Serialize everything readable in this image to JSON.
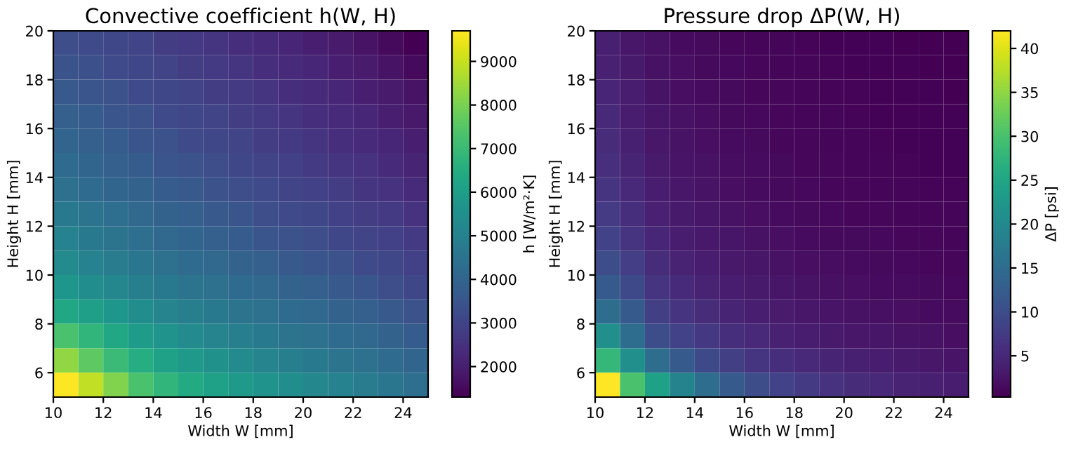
{
  "chart_data": [
    {
      "type": "heatmap",
      "title": "Convective coefficient h(W, H)",
      "xlabel": "Width W [mm]",
      "ylabel": "Height H [mm]",
      "clabel": "h [W/m²·K]",
      "xlim": [
        10,
        25
      ],
      "xticks": [
        10,
        12,
        14,
        16,
        18,
        20,
        22,
        24
      ],
      "ylim": [
        5,
        20
      ],
      "yticks": [
        6,
        8,
        10,
        12,
        14,
        16,
        18,
        20
      ],
      "clim": [
        1300,
        9700
      ],
      "cticks": [
        2000,
        3000,
        4000,
        5000,
        6000,
        7000,
        8000,
        9000
      ],
      "cells": [
        [
          3300,
          3200,
          3100,
          3000,
          2800,
          2700,
          2600,
          2400,
          2300,
          2200,
          2000,
          1900,
          1700,
          1500,
          1300
        ],
        [
          3450,
          3350,
          3200,
          3100,
          3000,
          2800,
          2700,
          2600,
          2400,
          2300,
          2200,
          2000,
          1900,
          1700,
          1500
        ],
        [
          3600,
          3500,
          3400,
          3200,
          3100,
          3000,
          2800,
          2700,
          2600,
          2400,
          2300,
          2200,
          2000,
          1900,
          1700
        ],
        [
          3800,
          3700,
          3500,
          3400,
          3200,
          3100,
          3000,
          2800,
          2700,
          2600,
          2400,
          2300,
          2200,
          2000,
          1850
        ],
        [
          4000,
          3800,
          3700,
          3500,
          3400,
          3200,
          3100,
          3000,
          2800,
          2700,
          2600,
          2400,
          2300,
          2200,
          2000
        ],
        [
          4200,
          4000,
          3800,
          3700,
          3500,
          3400,
          3300,
          3100,
          3000,
          2900,
          2700,
          2600,
          2500,
          2300,
          2150
        ],
        [
          4400,
          4200,
          4000,
          3900,
          3700,
          3600,
          3400,
          3300,
          3200,
          3000,
          2900,
          2800,
          2600,
          2500,
          2300
        ],
        [
          4700,
          4500,
          4300,
          4100,
          3900,
          3800,
          3600,
          3500,
          3300,
          3200,
          3100,
          2900,
          2800,
          2700,
          2500
        ],
        [
          5000,
          4700,
          4500,
          4300,
          4100,
          4000,
          3800,
          3700,
          3500,
          3400,
          3300,
          3100,
          3000,
          2900,
          2700
        ],
        [
          5300,
          5000,
          4800,
          4600,
          4400,
          4200,
          4100,
          3900,
          3800,
          3600,
          3500,
          3400,
          3200,
          3100,
          2900
        ],
        [
          5700,
          5400,
          5200,
          4900,
          4700,
          4500,
          4400,
          4200,
          4100,
          3900,
          3800,
          3600,
          3500,
          3300,
          3100
        ],
        [
          6300,
          6000,
          5700,
          5400,
          5100,
          4900,
          4700,
          4500,
          4400,
          4200,
          4100,
          3900,
          3800,
          3600,
          3400
        ],
        [
          7300,
          6800,
          6300,
          5900,
          5600,
          5300,
          5100,
          4900,
          4700,
          4500,
          4400,
          4200,
          4100,
          3900,
          3700
        ],
        [
          8300,
          7600,
          7000,
          6500,
          6100,
          5800,
          5500,
          5300,
          5100,
          4900,
          4700,
          4500,
          4400,
          4200,
          4000
        ],
        [
          9700,
          8900,
          8100,
          7300,
          6800,
          6400,
          6100,
          5800,
          5600,
          5400,
          5200,
          5000,
          4800,
          4600,
          4300
        ]
      ]
    },
    {
      "type": "heatmap",
      "title": "Pressure drop ΔP(W, H)",
      "xlabel": "Width W [mm]",
      "ylabel": "Height H [mm]",
      "clabel": "ΔP [psi]",
      "xlim": [
        10,
        25
      ],
      "xticks": [
        10,
        12,
        14,
        16,
        18,
        20,
        22,
        24
      ],
      "ylim": [
        5,
        20
      ],
      "yticks": [
        6,
        8,
        10,
        12,
        14,
        16,
        18,
        20
      ],
      "clim": [
        0.3,
        42
      ],
      "cticks": [
        5,
        10,
        15,
        20,
        25,
        30,
        35,
        40
      ],
      "cells": [
        [
          3.9,
          2.9,
          2.1,
          1.6,
          1.3,
          1.1,
          0.9,
          0.8,
          0.7,
          0.6,
          0.6,
          0.5,
          0.4,
          0.4,
          0.3
        ],
        [
          4.2,
          3.1,
          2.2,
          1.8,
          1.4,
          1.2,
          1,
          0.9,
          0.8,
          0.7,
          0.6,
          0.5,
          0.5,
          0.4,
          0.4
        ],
        [
          4.6,
          3.4,
          2.4,
          1.9,
          1.6,
          1.3,
          1.1,
          1,
          0.8,
          0.7,
          0.7,
          0.6,
          0.5,
          0.5,
          0.4
        ],
        [
          5,
          3.7,
          2.6,
          2.1,
          1.7,
          1.4,
          1.2,
          1,
          0.9,
          0.8,
          0.7,
          0.6,
          0.6,
          0.5,
          0.5
        ],
        [
          5.4,
          4,
          2.9,
          2.3,
          1.9,
          1.6,
          1.3,
          1.1,
          1,
          0.9,
          0.8,
          0.7,
          0.6,
          0.6,
          0.5
        ],
        [
          6,
          4.5,
          3.2,
          2.5,
          2.1,
          1.7,
          1.5,
          1.3,
          1.1,
          1,
          0.9,
          0.8,
          0.7,
          0.6,
          0.6
        ],
        [
          6.6,
          5,
          3.6,
          2.8,
          2.3,
          1.9,
          1.6,
          1.4,
          1.2,
          1.1,
          1,
          0.9,
          0.8,
          0.7,
          0.7
        ],
        [
          7.5,
          5.7,
          4.1,
          3.2,
          2.6,
          2.2,
          1.9,
          1.6,
          1.4,
          1.2,
          1.1,
          1,
          0.9,
          0.8,
          0.8
        ],
        [
          8.5,
          6.6,
          4.7,
          3.7,
          3,
          2.6,
          2.2,
          1.9,
          1.6,
          1.4,
          1.3,
          1.2,
          1.1,
          1,
          0.9
        ],
        [
          10,
          7.8,
          5.5,
          4.3,
          3.6,
          3,
          2.6,
          2.2,
          1.9,
          1.7,
          1.5,
          1.4,
          1.2,
          1.1,
          1
        ],
        [
          12,
          9.5,
          6.5,
          5.2,
          4.3,
          3.6,
          3.1,
          2.7,
          2.3,
          2,
          1.8,
          1.6,
          1.5,
          1.3,
          1.2
        ],
        [
          15,
          12,
          8,
          6.5,
          5.4,
          4.5,
          3.8,
          3.3,
          2.9,
          2.5,
          2.2,
          2,
          1.8,
          1.6,
          1.5
        ],
        [
          21,
          15,
          10,
          8.5,
          7,
          5.8,
          4.9,
          4.2,
          3.7,
          3.2,
          2.9,
          2.6,
          2.3,
          2.1,
          1.9
        ],
        [
          28,
          21,
          15,
          12,
          9.5,
          8,
          6.7,
          5.8,
          5,
          4.4,
          3.9,
          3.5,
          3.1,
          2.8,
          2.5
        ],
        [
          42,
          30,
          24,
          19,
          15,
          12,
          10,
          8.5,
          7.3,
          6.3,
          5.5,
          4.9,
          4.3,
          3.9,
          3.5
        ]
      ]
    }
  ]
}
